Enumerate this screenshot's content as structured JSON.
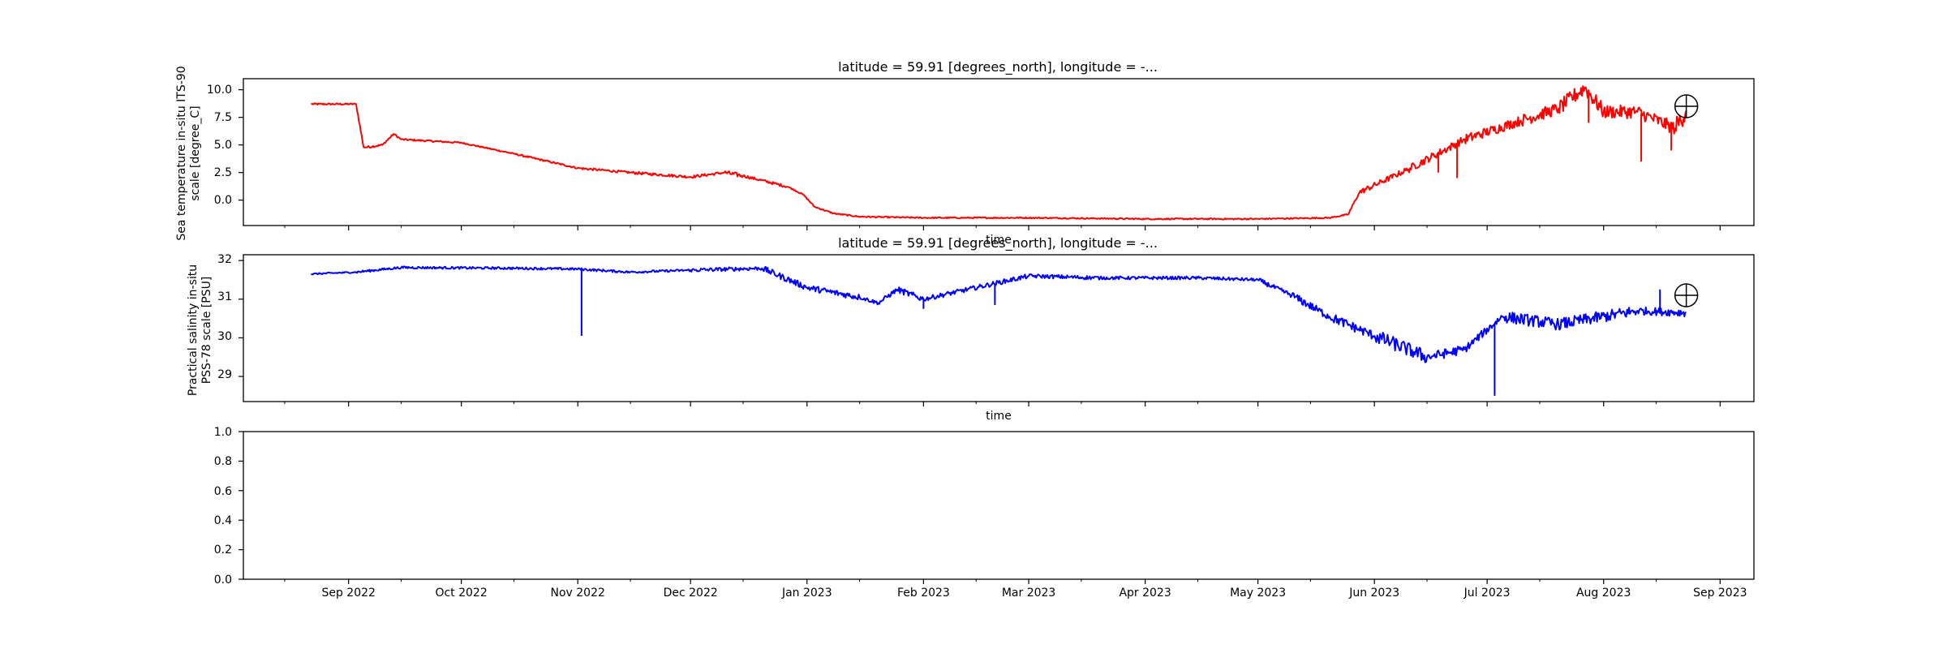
{
  "figure": {
    "background": "#ffffff",
    "x_ticks": [
      "Sep 2022",
      "Oct 2022",
      "Nov 2022",
      "Dec 2022",
      "Jan 2023",
      "Feb 2023",
      "Mar 2023",
      "Apr 2023",
      "May 2023",
      "Jun 2023",
      "Jul 2023",
      "Aug 2023",
      "Sep 2023"
    ],
    "x_tick_dates": [
      "2022-09-01",
      "2022-10-01",
      "2022-11-01",
      "2022-12-01",
      "2023-01-01",
      "2023-02-01",
      "2023-03-01",
      "2023-04-01",
      "2023-05-01",
      "2023-06-01",
      "2023-07-01",
      "2023-08-01",
      "2023-09-01"
    ],
    "x_minor_dates": [
      "2022-08-15",
      "2022-09-15",
      "2022-10-15",
      "2022-11-15",
      "2022-12-15",
      "2023-01-15",
      "2023-02-15",
      "2023-03-15",
      "2023-04-15",
      "2023-05-15",
      "2023-06-15",
      "2023-07-15",
      "2023-08-15",
      "2023-09-15"
    ],
    "xlim": [
      "2022-08-04",
      "2023-09-10"
    ]
  },
  "chart_data": [
    {
      "type": "line",
      "title": "latitude = 59.91 [degrees_north], longitude = -...",
      "xlabel": "time",
      "ylabel_lines": [
        "Sea temperature in-situ ITS-90",
        "scale [degree_C]"
      ],
      "ylim": [
        -2.3,
        11.0
      ],
      "yticks": [
        "10.0",
        "7.5",
        "5.0",
        "2.5",
        "0.0"
      ],
      "ytick_values": [
        10.0,
        7.5,
        5.0,
        2.5,
        0.0
      ],
      "color": "#ff0000",
      "noise": [
        0.08,
        0.15,
        0.12,
        0.1,
        0.08,
        0.08,
        0.08,
        0.06,
        0.08,
        0.1,
        0.12,
        0.12,
        0.2,
        0.12,
        0.06,
        0.06,
        0.06,
        0.06,
        0.06,
        0.06,
        0.06,
        0.06,
        0.06,
        0.06,
        0.12,
        0.25,
        0.35,
        0.45,
        0.55,
        0.7,
        0.7,
        0.6,
        0.6,
        0.9,
        0.5
      ],
      "spikes": [
        {
          "x": "2023-06-18",
          "y": 2.5
        },
        {
          "x": "2023-06-23",
          "y": 2.0
        },
        {
          "x": "2023-07-28",
          "y": 7.0
        },
        {
          "x": "2023-08-11",
          "y": 3.5
        },
        {
          "x": "2023-08-19",
          "y": 4.5
        }
      ],
      "series": [
        {
          "x": [
            "2022-08-22",
            "2022-09-03",
            "2022-09-05",
            "2022-09-06",
            "2022-09-10",
            "2022-09-13",
            "2022-09-15",
            "2022-10-01",
            "2022-10-15",
            "2022-11-01",
            "2022-11-15",
            "2022-12-01",
            "2022-12-10",
            "2022-12-15",
            "2022-12-27",
            "2022-12-31",
            "2023-01-03",
            "2023-01-08",
            "2023-01-15",
            "2023-02-01",
            "2023-03-01",
            "2023-04-01",
            "2023-05-01",
            "2023-05-20",
            "2023-05-25",
            "2023-05-28",
            "2023-06-10",
            "2023-06-25",
            "2023-07-10",
            "2023-07-20",
            "2023-07-27",
            "2023-08-01",
            "2023-08-10",
            "2023-08-20",
            "2023-08-23"
          ],
          "y": [
            8.7,
            8.7,
            4.8,
            4.8,
            5.0,
            6.0,
            5.5,
            5.2,
            4.2,
            2.9,
            2.5,
            2.1,
            2.5,
            2.2,
            1.2,
            0.5,
            -0.6,
            -1.2,
            -1.5,
            -1.6,
            -1.6,
            -1.7,
            -1.7,
            -1.6,
            -1.3,
            0.7,
            2.8,
            5.5,
            7.2,
            8.3,
            10.2,
            8.0,
            8.0,
            6.5,
            8.1
          ]
        }
      ],
      "marker": {
        "x": "2023-08-23",
        "y": 8.5
      }
    },
    {
      "type": "line",
      "title": "latitude = 59.91 [degrees_north], longitude = -...",
      "xlabel": "time",
      "ylabel_lines": [
        "Practical salinity in-situ",
        "PSS-78 scale [PSU]"
      ],
      "ylim": [
        28.35,
        32.15
      ],
      "yticks": [
        "32",
        "31",
        "30",
        "29"
      ],
      "ytick_values": [
        32,
        31,
        30,
        29
      ],
      "color": "#0000ff",
      "noise": [
        0.02,
        0.03,
        0.03,
        0.03,
        0.03,
        0.03,
        0.05,
        0.08,
        0.08,
        0.05,
        0.06,
        0.08,
        0.06,
        0.05,
        0.04,
        0.04,
        0.06,
        0.1,
        0.12,
        0.18,
        0.12,
        0.1,
        0.15,
        0.15,
        0.1,
        0.12
      ],
      "spikes": [
        {
          "x": "2022-11-02",
          "y": 30.05
        },
        {
          "x": "2023-02-01",
          "y": 30.75
        },
        {
          "x": "2023-02-20",
          "y": 30.85
        },
        {
          "x": "2023-07-03",
          "y": 28.5
        },
        {
          "x": "2023-08-16",
          "y": 31.25
        }
      ],
      "series": [
        {
          "x": [
            "2022-08-22",
            "2022-09-03",
            "2022-09-15",
            "2022-10-15",
            "2022-11-01",
            "2022-11-15",
            "2022-12-01",
            "2022-12-20",
            "2023-01-01",
            "2023-01-15",
            "2023-01-20",
            "2023-01-25",
            "2023-02-01",
            "2023-03-01",
            "2023-03-20",
            "2023-04-15",
            "2023-05-01",
            "2023-05-10",
            "2023-05-20",
            "2023-06-01",
            "2023-06-15",
            "2023-06-25",
            "2023-07-05",
            "2023-07-20",
            "2023-08-10",
            "2023-08-23"
          ],
          "y": [
            31.65,
            31.7,
            31.82,
            31.8,
            31.78,
            31.7,
            31.75,
            31.8,
            31.3,
            31.05,
            30.9,
            31.25,
            31.0,
            31.6,
            31.55,
            31.55,
            31.5,
            31.1,
            30.55,
            30.05,
            29.5,
            29.7,
            30.55,
            30.35,
            30.7,
            30.65
          ]
        }
      ],
      "marker": {
        "x": "2023-08-23",
        "y": 31.1
      }
    },
    {
      "type": "line",
      "title": "",
      "xlabel": "",
      "ylabel_lines": [],
      "ylim": [
        0.0,
        1.0
      ],
      "yticks": [
        "1.0",
        "0.8",
        "0.6",
        "0.4",
        "0.2",
        "0.0"
      ],
      "ytick_values": [
        1.0,
        0.8,
        0.6,
        0.4,
        0.2,
        0.0
      ],
      "color": "#000000",
      "series": []
    }
  ]
}
